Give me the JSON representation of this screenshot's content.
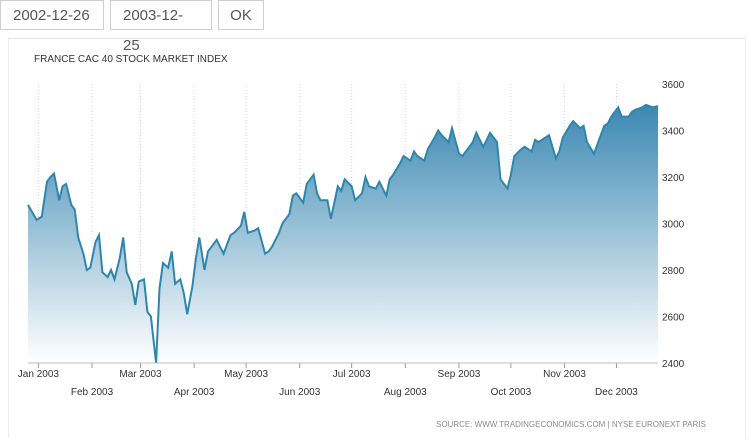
{
  "toolbar": {
    "start_date": "2002-12-26",
    "end_date": "2003-12-25",
    "ok_label": "OK"
  },
  "chart_data": {
    "type": "area",
    "title": "FRANCE CAC 40 STOCK MARKET INDEX",
    "source": "SOURCE: WWW.TRADINGECONOMICS.COM  |  NYSE EURONEXT PARIS",
    "ylim": [
      2400,
      3600
    ],
    "y_ticks": [
      2400,
      2600,
      2800,
      3000,
      3200,
      3400,
      3600
    ],
    "x_ticks": [
      "Jan 2003",
      "Feb 2003",
      "Mar 2003",
      "Apr 2003",
      "May 2003",
      "Jun 2003",
      "Jul 2003",
      "Aug 2003",
      "Sep 2003",
      "Oct 2003",
      "Nov 2003",
      "Dec 2003"
    ],
    "grid": "vertical",
    "colors": {
      "line": "#2f86ad",
      "fill_top": "#3b88b2",
      "fill_bottom": "#ffffff",
      "grid": "#d9d9d9",
      "text": "#333333",
      "source_text": "#8a8a8a"
    },
    "x": [
      "2002-12-26",
      "2002-12-31",
      "2003-01-03",
      "2003-01-06",
      "2003-01-08",
      "2003-01-10",
      "2003-01-13",
      "2003-01-15",
      "2003-01-17",
      "2003-01-20",
      "2003-01-22",
      "2003-01-24",
      "2003-01-27",
      "2003-01-29",
      "2003-01-31",
      "2003-02-03",
      "2003-02-05",
      "2003-02-07",
      "2003-02-10",
      "2003-02-12",
      "2003-02-14",
      "2003-02-17",
      "2003-02-19",
      "2003-02-21",
      "2003-02-24",
      "2003-02-26",
      "2003-02-28",
      "2003-03-03",
      "2003-03-05",
      "2003-03-07",
      "2003-03-10",
      "2003-03-12",
      "2003-03-14",
      "2003-03-17",
      "2003-03-19",
      "2003-03-21",
      "2003-03-24",
      "2003-03-26",
      "2003-03-28",
      "2003-03-31",
      "2003-04-02",
      "2003-04-04",
      "2003-04-07",
      "2003-04-09",
      "2003-04-11",
      "2003-04-14",
      "2003-04-16",
      "2003-04-18",
      "2003-04-22",
      "2003-04-24",
      "2003-04-28",
      "2003-04-30",
      "2003-05-02",
      "2003-05-06",
      "2003-05-08",
      "2003-05-12",
      "2003-05-14",
      "2003-05-16",
      "2003-05-20",
      "2003-05-22",
      "2003-05-26",
      "2003-05-28",
      "2003-05-30",
      "2003-06-03",
      "2003-06-05",
      "2003-06-09",
      "2003-06-11",
      "2003-06-13",
      "2003-06-17",
      "2003-06-19",
      "2003-06-23",
      "2003-06-25",
      "2003-06-27",
      "2003-07-01",
      "2003-07-03",
      "2003-07-07",
      "2003-07-09",
      "2003-07-11",
      "2003-07-15",
      "2003-07-17",
      "2003-07-21",
      "2003-07-23",
      "2003-07-25",
      "2003-07-29",
      "2003-07-31",
      "2003-08-04",
      "2003-08-06",
      "2003-08-08",
      "2003-08-12",
      "2003-08-14",
      "2003-08-18",
      "2003-08-20",
      "2003-08-22",
      "2003-08-26",
      "2003-08-28",
      "2003-09-01",
      "2003-09-03",
      "2003-09-05",
      "2003-09-09",
      "2003-09-11",
      "2003-09-15",
      "2003-09-17",
      "2003-09-19",
      "2003-09-23",
      "2003-09-25",
      "2003-09-29",
      "2003-10-01",
      "2003-10-03",
      "2003-10-07",
      "2003-10-09",
      "2003-10-13",
      "2003-10-15",
      "2003-10-17",
      "2003-10-21",
      "2003-10-23",
      "2003-10-27",
      "2003-10-29",
      "2003-10-31",
      "2003-11-04",
      "2003-11-06",
      "2003-11-10",
      "2003-11-12",
      "2003-11-14",
      "2003-11-18",
      "2003-11-20",
      "2003-11-24",
      "2003-11-26",
      "2003-11-28",
      "2003-12-02",
      "2003-12-04",
      "2003-12-08",
      "2003-12-10",
      "2003-12-12",
      "2003-12-16",
      "2003-12-18",
      "2003-12-22",
      "2003-12-25"
    ],
    "values": [
      3080,
      3015,
      3030,
      3180,
      3200,
      3215,
      3100,
      3160,
      3170,
      3080,
      3060,
      2940,
      2870,
      2800,
      2810,
      2920,
      2950,
      2790,
      2770,
      2800,
      2760,
      2850,
      2940,
      2790,
      2740,
      2650,
      2750,
      2760,
      2620,
      2600,
      2400,
      2720,
      2830,
      2810,
      2880,
      2740,
      2760,
      2700,
      2610,
      2730,
      2850,
      2940,
      2800,
      2880,
      2900,
      2930,
      2900,
      2870,
      2950,
      2960,
      2990,
      3050,
      2960,
      2970,
      2980,
      2870,
      2880,
      2900,
      2960,
      3000,
      3040,
      3120,
      3130,
      3090,
      3170,
      3210,
      3130,
      3100,
      3100,
      3020,
      3160,
      3140,
      3190,
      3160,
      3100,
      3130,
      3200,
      3160,
      3150,
      3180,
      3120,
      3190,
      3210,
      3260,
      3290,
      3270,
      3310,
      3290,
      3270,
      3320,
      3370,
      3400,
      3380,
      3350,
      3410,
      3300,
      3290,
      3310,
      3350,
      3390,
      3330,
      3360,
      3390,
      3350,
      3190,
      3150,
      3210,
      3290,
      3320,
      3330,
      3310,
      3360,
      3350,
      3370,
      3380,
      3280,
      3310,
      3370,
      3420,
      3440,
      3410,
      3420,
      3350,
      3300,
      3340,
      3420,
      3430,
      3460,
      3500,
      3460,
      3460,
      3480,
      3490,
      3500,
      3510,
      3500,
      3505
    ]
  }
}
